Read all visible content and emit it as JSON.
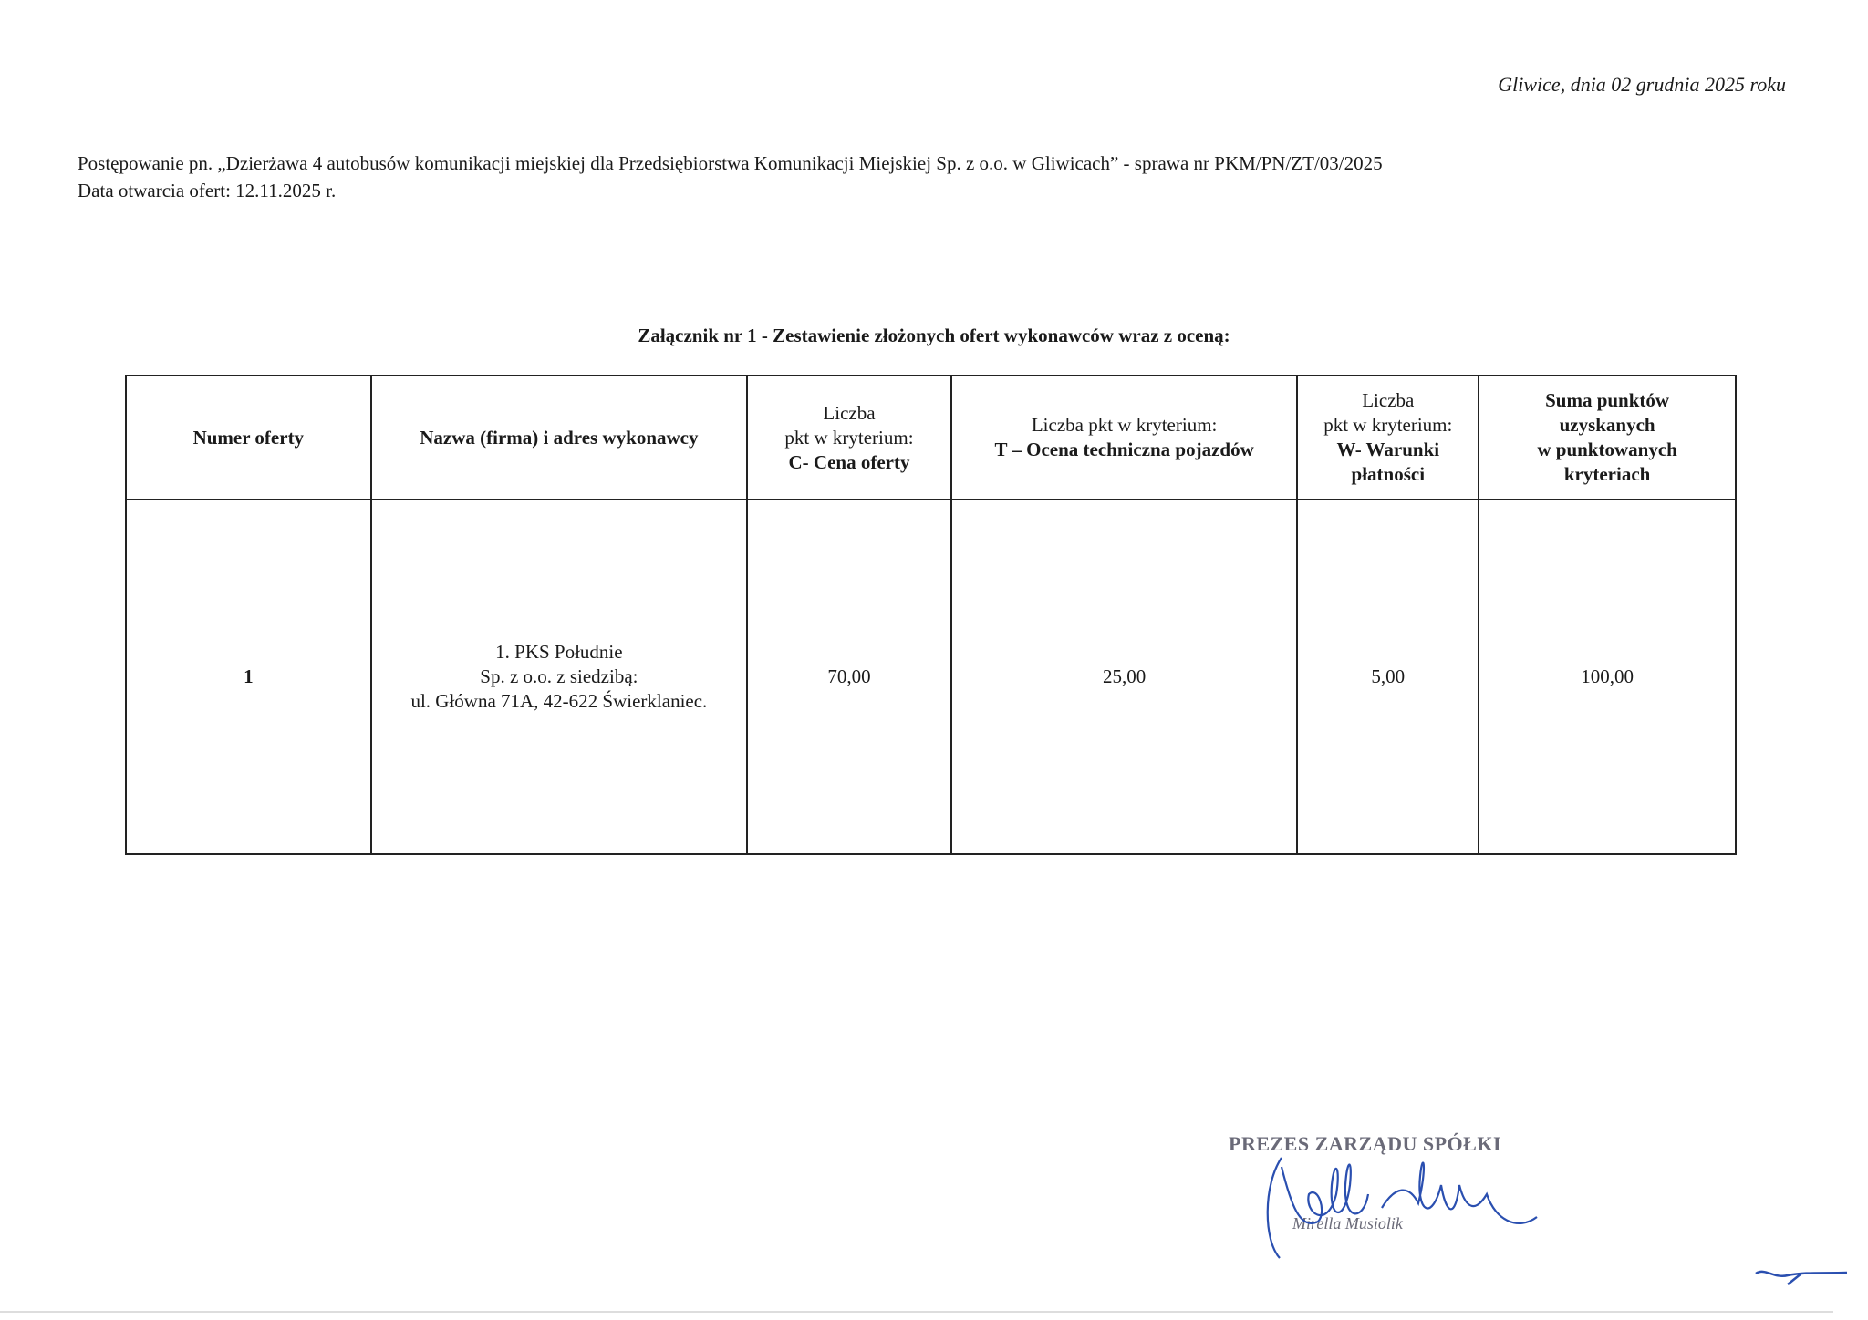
{
  "header": {
    "date": "Gliwice, dnia 02 grudnia 2025 roku",
    "proceeding": "Postępowanie pn. „Dzierżawa 4 autobusów komunikacji miejskiej dla Przedsiębiorstwa Komunikacji Miejskiej Sp. z o.o. w Gliwicach” - sprawa nr PKM/PN/ZT/03/2025",
    "opening_date": "Data otwarcia ofert: 12.11.2025 r."
  },
  "annex_title": "Załącznik nr 1 - Zestawienie złożonych ofert wykonawców wraz z oceną:",
  "table": {
    "headers": [
      {
        "plain": "",
        "bold": "Numer oferty"
      },
      {
        "plain": "",
        "bold": "Nazwa (firma) i adres wykonawcy"
      },
      {
        "plain": "Liczba\npkt w kryterium:",
        "bold": "C- Cena oferty"
      },
      {
        "plain": "Liczba pkt w kryterium:",
        "bold": "T – Ocena techniczna pojazdów"
      },
      {
        "plain": "Liczba\npkt w kryterium:",
        "bold": "W- Warunki\npłatności"
      },
      {
        "plain": "",
        "bold": "Suma punktów\nuzyskanych\nw punktowanych\nkryteriach"
      }
    ],
    "rows": [
      {
        "number": "1",
        "contractor": [
          "1. PKS Południe",
          "Sp. z o.o. z siedzibą:",
          "ul. Główna 71A, 42-622 Świerklaniec."
        ],
        "c_price": "70,00",
        "t_technical": "25,00",
        "w_payment": "5,00",
        "total": "100,00"
      }
    ]
  },
  "signature": {
    "stamp_title": "PREZES ZARZĄDU SPÓŁKI",
    "stamp_name": "Mirella Musiolik",
    "ink_color": "#2a4fb0"
  }
}
